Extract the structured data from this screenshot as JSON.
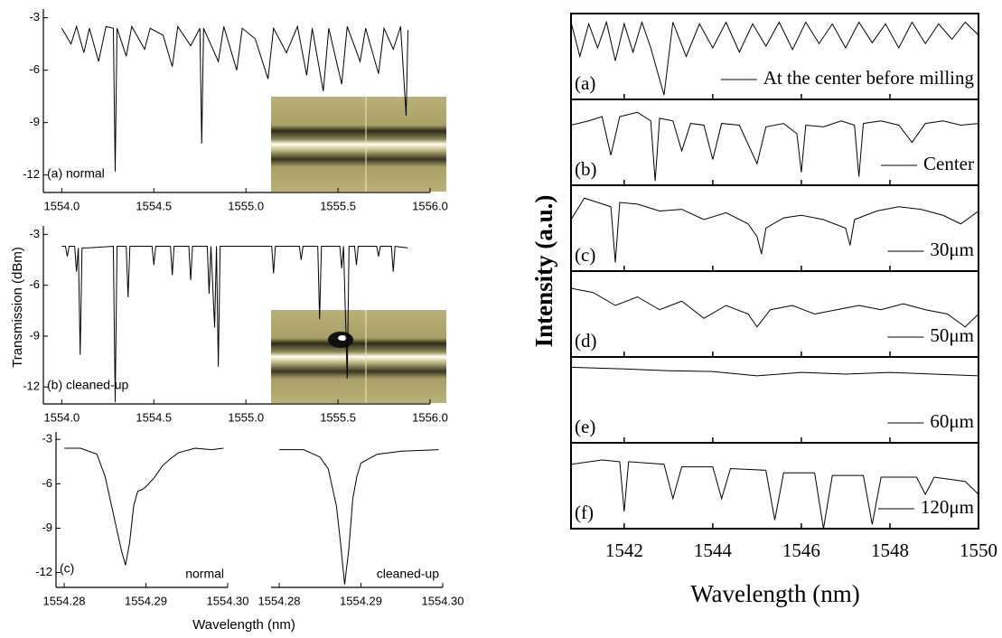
{
  "figure_labels": {
    "left_ylabel": "Transmission (dBm)",
    "left_xlabel": "Wavelength (nm)",
    "right_ylabel": "Intensity (a.u.)",
    "right_xlabel": "Wavelength (nm)"
  },
  "chart_data": [
    {
      "type": "line",
      "label": "(a) normal",
      "xlim": [
        1553.9,
        1556.0
      ],
      "ylim": [
        -13,
        -2.5
      ],
      "xticks": [
        {
          "value": 1554,
          "label": "1554.0"
        },
        1554.5,
        {
          "value": 1555,
          "label": "1555.0"
        },
        1555.5,
        {
          "value": 1556,
          "label": "1556.0"
        }
      ],
      "yticks": [
        -3,
        -6,
        -9,
        -12
      ],
      "series": [
        {
          "color": "#000000",
          "x": [
            1554.0,
            1554.05,
            1554.08,
            1554.12,
            1554.15,
            1554.2,
            1554.24,
            1554.28,
            1554.29,
            1554.3,
            1554.35,
            1554.38,
            1554.45,
            1554.48,
            1554.55,
            1554.6,
            1554.63,
            1554.7,
            1554.75,
            1554.76,
            1554.77,
            1554.85,
            1554.88,
            1554.95,
            1554.98,
            1555.05,
            1555.12,
            1555.15,
            1555.22,
            1555.28,
            1555.33,
            1555.36,
            1555.42,
            1555.45,
            1555.52,
            1555.55,
            1555.62,
            1555.65,
            1555.72,
            1555.75,
            1555.8,
            1555.84,
            1555.87,
            1555.88
          ],
          "values": [
            -3.6,
            -4.5,
            -3.5,
            -5.0,
            -3.6,
            -5.5,
            -3.5,
            -3.6,
            -11.8,
            -3.6,
            -5.2,
            -3.5,
            -4.8,
            -3.6,
            -4.0,
            -5.8,
            -3.5,
            -4.6,
            -3.6,
            -10.2,
            -3.6,
            -5.5,
            -3.5,
            -6.0,
            -3.6,
            -4.2,
            -6.5,
            -3.6,
            -5.0,
            -3.5,
            -6.3,
            -3.6,
            -7.2,
            -3.6,
            -6.8,
            -3.5,
            -5.5,
            -3.6,
            -6.2,
            -3.6,
            -4.8,
            -3.5,
            -8.6,
            -3.7
          ]
        }
      ]
    },
    {
      "type": "line",
      "label": "(b) cleaned-up",
      "xlim": [
        1553.9,
        1556.0
      ],
      "ylim": [
        -13,
        -2.5
      ],
      "xticks": [
        {
          "value": 1554,
          "label": "1554.0"
        },
        1554.5,
        {
          "value": 1555,
          "label": "1555.0"
        },
        1555.5,
        {
          "value": 1556,
          "label": "1556.0"
        }
      ],
      "yticks": [
        -3,
        -6,
        -9,
        -12
      ],
      "series": [
        {
          "color": "#000000",
          "x": [
            1554.0,
            1554.02,
            1554.03,
            1554.04,
            1554.07,
            1554.08,
            1554.09,
            1554.1,
            1554.11,
            1554.14,
            1554.28,
            1554.29,
            1554.3,
            1554.35,
            1554.36,
            1554.37,
            1554.49,
            1554.5,
            1554.51,
            1554.59,
            1554.6,
            1554.61,
            1554.69,
            1554.7,
            1554.71,
            1554.79,
            1554.8,
            1554.81,
            1554.83,
            1554.84,
            1554.85,
            1554.86,
            1555.14,
            1555.15,
            1555.16,
            1555.29,
            1555.3,
            1555.31,
            1555.39,
            1555.4,
            1555.41,
            1555.51,
            1555.52,
            1555.53,
            1555.55,
            1555.56,
            1555.59,
            1555.6,
            1555.61,
            1555.71,
            1555.72,
            1555.73,
            1555.79,
            1555.8,
            1555.81,
            1555.88
          ],
          "values": [
            -3.7,
            -3.7,
            -4.3,
            -3.7,
            -3.7,
            -5.2,
            -3.8,
            -10.1,
            -3.8,
            -3.8,
            -3.7,
            -12.9,
            -3.7,
            -3.7,
            -6.7,
            -3.7,
            -3.7,
            -4.8,
            -3.7,
            -3.7,
            -5.4,
            -3.7,
            -3.7,
            -5.7,
            -3.7,
            -3.7,
            -6.5,
            -3.7,
            -8.5,
            -3.7,
            -10.8,
            -3.7,
            -3.7,
            -5.3,
            -3.7,
            -3.7,
            -4.5,
            -3.7,
            -3.7,
            -8.0,
            -3.7,
            -3.7,
            -5.0,
            -3.7,
            -11.5,
            -3.7,
            -3.7,
            -4.8,
            -3.7,
            -3.7,
            -4.3,
            -3.7,
            -3.7,
            -5.2,
            -3.7,
            -3.8
          ]
        }
      ]
    },
    {
      "type": "line",
      "label": "(c)",
      "note": "normal",
      "xlim": [
        1554.279,
        1554.3
      ],
      "ylim": [
        -13,
        -2.5
      ],
      "xticks": [
        1554.28,
        1554.29,
        {
          "value": 1554.3,
          "label": "1554.30"
        }
      ],
      "yticks": [
        -3,
        -6,
        -9,
        -12
      ],
      "series": [
        {
          "color": "#000000",
          "x": [
            1554.28,
            1554.282,
            1554.284,
            1554.285,
            1554.286,
            1554.287,
            1554.2875,
            1554.288,
            1554.2885,
            1554.289,
            1554.2895,
            1554.29,
            1554.291,
            1554.292,
            1554.293,
            1554.294,
            1554.296,
            1554.298,
            1554.2995
          ],
          "values": [
            -3.6,
            -3.6,
            -4.0,
            -5.5,
            -8.0,
            -10.5,
            -11.5,
            -10.0,
            -7.5,
            -6.5,
            -6.4,
            -6.2,
            -5.6,
            -4.8,
            -4.3,
            -3.9,
            -3.6,
            -3.7,
            -3.6
          ]
        }
      ]
    },
    {
      "type": "line",
      "note": "cleaned-up",
      "xlim": [
        1554.279,
        1554.3
      ],
      "ylim": [
        -13,
        -2.5
      ],
      "xticks": [
        1554.28,
        1554.29,
        {
          "value": 1554.3,
          "label": "1554.30"
        }
      ],
      "series": [
        {
          "color": "#000000",
          "x": [
            1554.28,
            1554.283,
            1554.285,
            1554.286,
            1554.287,
            1554.2875,
            1554.288,
            1554.2885,
            1554.289,
            1554.2895,
            1554.29,
            1554.292,
            1554.295,
            1554.2995
          ],
          "values": [
            -3.7,
            -3.7,
            -4.2,
            -5.0,
            -7.5,
            -10.0,
            -12.8,
            -10.5,
            -7.0,
            -5.5,
            -4.6,
            -4.0,
            -3.8,
            -3.7
          ]
        }
      ]
    },
    {
      "type": "line",
      "label": "(a)",
      "xlim": [
        1540.8,
        1550
      ],
      "ylim": [
        0,
        1
      ],
      "series": [
        {
          "name": "At the center before milling",
          "color": "#000000",
          "x": [
            1540.8,
            1541.0,
            1541.2,
            1541.4,
            1541.6,
            1541.8,
            1542.0,
            1542.2,
            1542.4,
            1542.6,
            1542.9,
            1543.1,
            1543.4,
            1543.7,
            1544.0,
            1544.3,
            1544.6,
            1544.9,
            1545.2,
            1545.5,
            1545.8,
            1546.1,
            1546.4,
            1546.7,
            1547.0,
            1547.3,
            1547.6,
            1547.9,
            1548.2,
            1548.5,
            1548.8,
            1549.1,
            1549.4,
            1549.7,
            1550.0
          ],
          "values": [
            0.9,
            0.5,
            0.88,
            0.6,
            0.9,
            0.45,
            0.88,
            0.55,
            0.9,
            0.6,
            0.05,
            0.9,
            0.5,
            0.88,
            0.6,
            0.9,
            0.55,
            0.88,
            0.62,
            0.9,
            0.58,
            0.9,
            0.65,
            0.88,
            0.6,
            0.9,
            0.66,
            0.88,
            0.6,
            0.9,
            0.65,
            0.88,
            0.7,
            0.9,
            0.75
          ]
        }
      ]
    },
    {
      "type": "line",
      "label": "(b)",
      "xlim": [
        1540.8,
        1550
      ],
      "ylim": [
        0,
        1
      ],
      "series": [
        {
          "name": "Center",
          "color": "#000000",
          "x": [
            1540.8,
            1541.2,
            1541.5,
            1541.7,
            1541.9,
            1542.3,
            1542.6,
            1542.7,
            1542.8,
            1543.1,
            1543.3,
            1543.5,
            1543.8,
            1544.0,
            1544.2,
            1544.6,
            1545.0,
            1545.2,
            1545.6,
            1545.9,
            1546.0,
            1546.1,
            1546.5,
            1546.9,
            1547.2,
            1547.3,
            1547.4,
            1547.8,
            1548.2,
            1548.5,
            1548.8,
            1549.2,
            1549.6,
            1550.0
          ],
          "values": [
            0.7,
            0.75,
            0.8,
            0.35,
            0.8,
            0.85,
            0.75,
            0.05,
            0.78,
            0.75,
            0.4,
            0.72,
            0.7,
            0.3,
            0.72,
            0.7,
            0.25,
            0.68,
            0.72,
            0.6,
            0.15,
            0.7,
            0.68,
            0.75,
            0.7,
            0.1,
            0.72,
            0.75,
            0.7,
            0.5,
            0.72,
            0.75,
            0.7,
            0.72
          ]
        }
      ]
    },
    {
      "type": "line",
      "label": "(c)",
      "xlim": [
        1540.8,
        1550
      ],
      "ylim": [
        0,
        1
      ],
      "series": [
        {
          "name": "30μm",
          "color": "#000000",
          "x": [
            1540.8,
            1541.1,
            1541.4,
            1541.7,
            1541.8,
            1541.9,
            1542.3,
            1542.8,
            1543.3,
            1543.8,
            1544.3,
            1544.8,
            1545.0,
            1545.1,
            1545.2,
            1545.6,
            1546.0,
            1546.5,
            1547.0,
            1547.1,
            1547.2,
            1547.7,
            1548.2,
            1548.7,
            1549.2,
            1549.6,
            1550.0
          ],
          "values": [
            0.6,
            0.85,
            0.8,
            0.75,
            0.1,
            0.8,
            0.78,
            0.7,
            0.72,
            0.6,
            0.68,
            0.55,
            0.4,
            0.2,
            0.5,
            0.62,
            0.65,
            0.6,
            0.5,
            0.3,
            0.6,
            0.7,
            0.75,
            0.72,
            0.65,
            0.55,
            0.7
          ]
        }
      ]
    },
    {
      "type": "line",
      "label": "(d)",
      "xlim": [
        1540.8,
        1550
      ],
      "ylim": [
        0,
        1
      ],
      "series": [
        {
          "name": "50μm",
          "color": "#000000",
          "x": [
            1540.8,
            1541.3,
            1541.8,
            1542.3,
            1542.8,
            1543.3,
            1543.8,
            1544.3,
            1544.8,
            1545.0,
            1545.3,
            1545.8,
            1546.3,
            1546.8,
            1547.3,
            1547.8,
            1548.3,
            1548.8,
            1549.3,
            1549.7,
            1550.0
          ],
          "values": [
            0.8,
            0.75,
            0.6,
            0.7,
            0.55,
            0.65,
            0.45,
            0.6,
            0.5,
            0.35,
            0.55,
            0.6,
            0.5,
            0.55,
            0.6,
            0.55,
            0.62,
            0.55,
            0.5,
            0.35,
            0.5
          ]
        }
      ]
    },
    {
      "type": "line",
      "label": "(e)",
      "xlim": [
        1540.8,
        1550
      ],
      "ylim": [
        0,
        1
      ],
      "series": [
        {
          "name": "60μm",
          "color": "#000000",
          "x": [
            1540.8,
            1542,
            1543,
            1544,
            1545,
            1546,
            1547,
            1548,
            1549,
            1550
          ],
          "values": [
            0.88,
            0.86,
            0.84,
            0.83,
            0.78,
            0.82,
            0.8,
            0.82,
            0.8,
            0.78
          ]
        }
      ]
    },
    {
      "type": "line",
      "label": "(f)",
      "xlim": [
        1540.8,
        1550
      ],
      "ylim": [
        0,
        1
      ],
      "xticks": [
        1542,
        1544,
        1546,
        1548,
        1550
      ],
      "series": [
        {
          "name": "120μm",
          "color": "#000000",
          "x": [
            1540.8,
            1541.5,
            1541.9,
            1542.0,
            1542.1,
            1542.9,
            1543.1,
            1543.3,
            1544.0,
            1544.2,
            1544.4,
            1545.2,
            1545.4,
            1545.6,
            1546.3,
            1546.5,
            1546.7,
            1547.4,
            1547.6,
            1547.8,
            1548.6,
            1548.8,
            1549.0,
            1549.7,
            1550.0
          ],
          "values": [
            0.75,
            0.8,
            0.78,
            0.2,
            0.78,
            0.75,
            0.35,
            0.72,
            0.72,
            0.35,
            0.7,
            0.68,
            0.1,
            0.65,
            0.65,
            0.0,
            0.62,
            0.62,
            0.05,
            0.6,
            0.6,
            0.4,
            0.6,
            0.55,
            0.4
          ]
        }
      ]
    }
  ]
}
